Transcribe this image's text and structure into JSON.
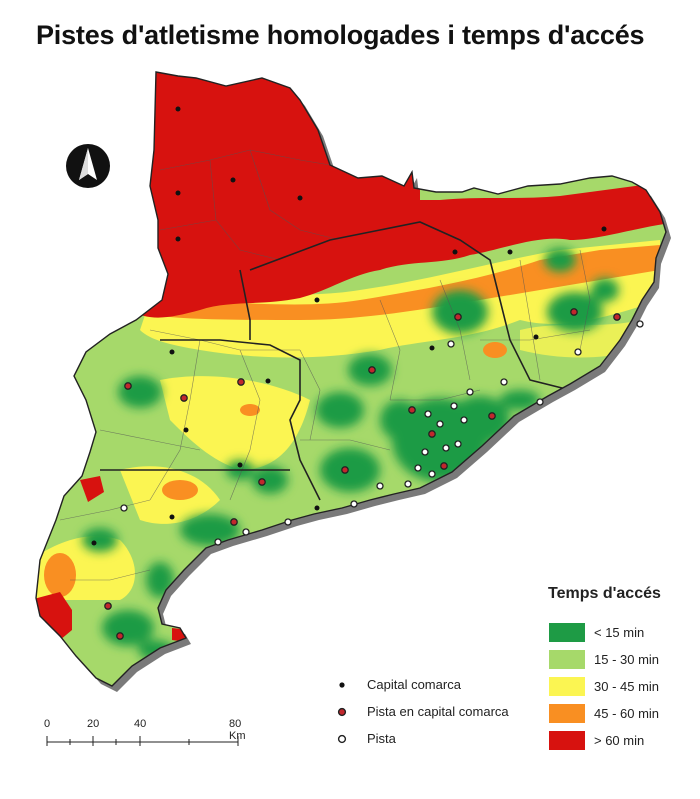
{
  "title": "Pistes d'atletisme homologades i temps d'accés",
  "legend": {
    "title": "Temps d'accés",
    "classes": [
      {
        "label": "< 15 min",
        "color": "#1e9b45"
      },
      {
        "label": "15 - 30 min",
        "color": "#a6d96a"
      },
      {
        "label": "30 - 45 min",
        "color": "#fbf552"
      },
      {
        "label": "45 - 60 min",
        "color": "#f98f22"
      },
      {
        "label": "> 60 min",
        "color": "#d7120f"
      }
    ]
  },
  "symbols": [
    {
      "label": "Capital comarca",
      "icon": "black-dot"
    },
    {
      "label": "Pista en capital comarca",
      "icon": "red-dot-dark-ring"
    },
    {
      "label": "Pista",
      "icon": "white-dot-dark-ring"
    }
  ],
  "scale": {
    "ticks": [
      "0",
      "20",
      "40",
      "80 Km"
    ]
  },
  "north_arrow": {
    "icon": "north-arrow-icon"
  }
}
